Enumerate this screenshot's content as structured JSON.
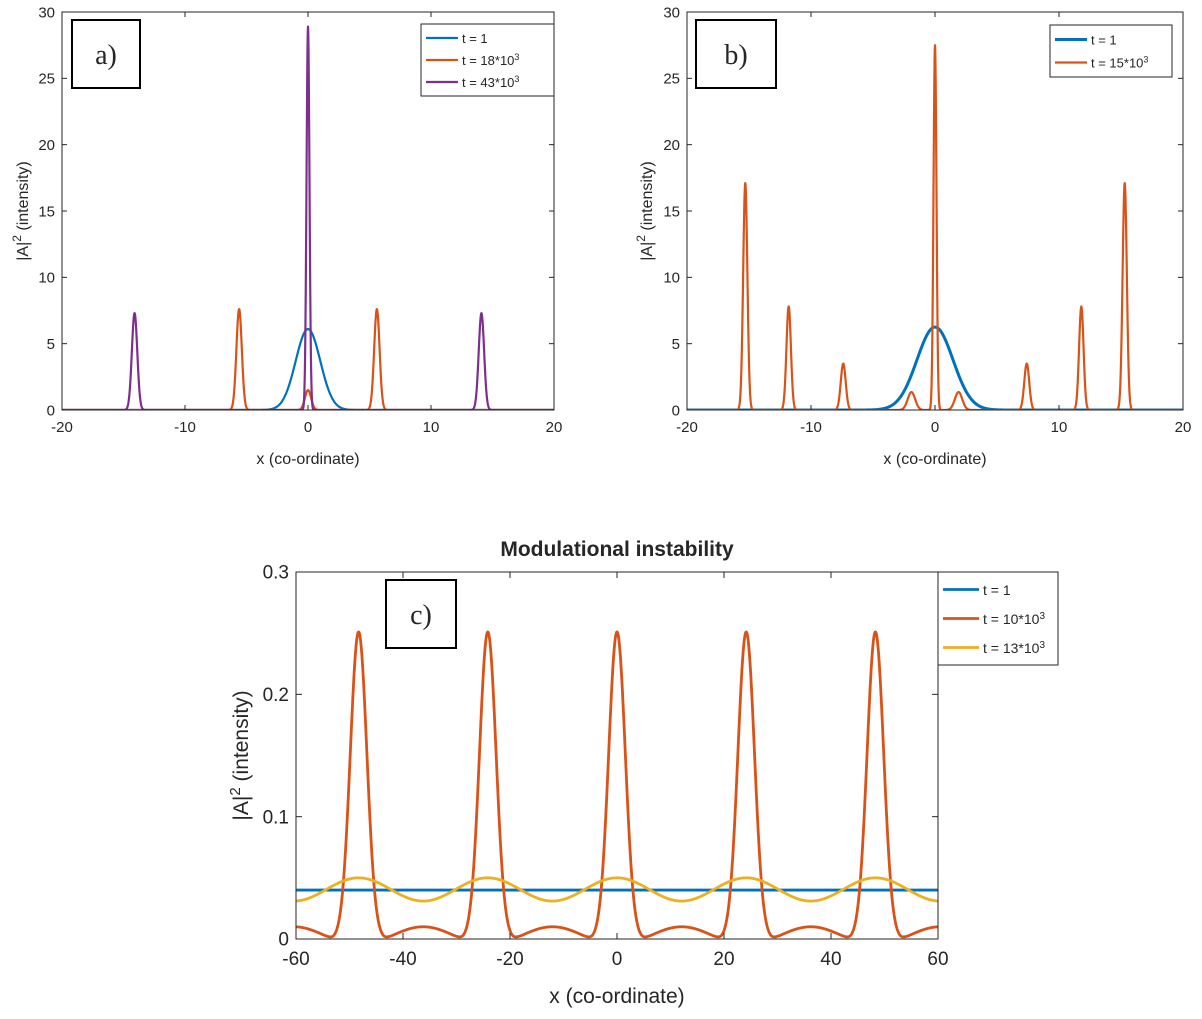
{
  "chart_data": [
    {
      "type": "line",
      "panel": "a)",
      "title": "",
      "xlabel": "x (co-ordinate)",
      "ylabel": "|A|^2 (intensity)",
      "xlim": [
        -20,
        20
      ],
      "ylim": [
        0,
        30
      ],
      "xticks": [
        -20,
        -10,
        0,
        10,
        20
      ],
      "yticks": [
        0,
        5,
        10,
        15,
        20,
        25,
        30
      ],
      "grid": false,
      "legend_position": "top-right",
      "series": [
        {
          "name": "t = 1",
          "color": "#0072bd",
          "base": 0,
          "peaks": [
            {
              "x": 0,
              "h": 6.1,
              "w": 1.0
            }
          ]
        },
        {
          "name": "t = 18*10^3",
          "color": "#d95319",
          "base": 0,
          "peaks": [
            {
              "x": -5.6,
              "h": 7.6,
              "w": 0.22
            },
            {
              "x": 0,
              "h": 1.5,
              "w": 0.25
            },
            {
              "x": 5.6,
              "h": 7.6,
              "w": 0.22
            }
          ]
        },
        {
          "name": "t = 43*10^3",
          "color": "#7e2f8e",
          "base": 0,
          "peaks": [
            {
              "x": -14.1,
              "h": 7.3,
              "w": 0.22
            },
            {
              "x": 0,
              "h": 28.9,
              "w": 0.12
            },
            {
              "x": 14.1,
              "h": 7.3,
              "w": 0.22
            }
          ]
        }
      ]
    },
    {
      "type": "line",
      "panel": "b)",
      "title": "",
      "xlabel": "x (co-ordinate)",
      "ylabel": "|A|^2 (intensity)",
      "xlim": [
        -20,
        20
      ],
      "ylim": [
        0,
        30
      ],
      "xticks": [
        -20,
        -10,
        0,
        10,
        20
      ],
      "yticks": [
        0,
        5,
        10,
        15,
        20,
        25,
        30
      ],
      "grid": false,
      "legend_position": "top-right",
      "series": [
        {
          "name": "t = 1",
          "color": "#0072bd",
          "base": 0,
          "peaks": [
            {
              "x": 0,
              "h": 6.25,
              "w": 1.45
            }
          ]
        },
        {
          "name": "t = 15*10^3",
          "color": "#d95319",
          "base": 0,
          "peaks": [
            {
              "x": -15.3,
              "h": 17.1,
              "w": 0.17
            },
            {
              "x": -11.8,
              "h": 7.8,
              "w": 0.18
            },
            {
              "x": -7.4,
              "h": 3.5,
              "w": 0.2
            },
            {
              "x": -1.9,
              "h": 1.35,
              "w": 0.3
            },
            {
              "x": 0,
              "h": 27.5,
              "w": 0.12
            },
            {
              "x": 1.9,
              "h": 1.35,
              "w": 0.3
            },
            {
              "x": 7.4,
              "h": 3.5,
              "w": 0.2
            },
            {
              "x": 11.8,
              "h": 7.8,
              "w": 0.18
            },
            {
              "x": 15.3,
              "h": 17.1,
              "w": 0.17
            }
          ]
        }
      ]
    },
    {
      "type": "line",
      "panel": "c)",
      "title": "Modulational instability",
      "xlabel": "x (co-ordinate)",
      "ylabel": "|A|^2 (intensity)",
      "xlim": [
        -60,
        60
      ],
      "ylim": [
        0,
        0.3
      ],
      "xticks": [
        -60,
        -40,
        -20,
        0,
        20,
        40,
        60
      ],
      "yticks": [
        0,
        0.1,
        0.2,
        0.3
      ],
      "grid": false,
      "legend_position": "top-right",
      "series": [
        {
          "name": "t = 1",
          "color": "#0072bd",
          "constant": 0.04
        },
        {
          "name": "t = 10*10^3",
          "color": "#d95319",
          "periodic": {
            "period": 24.15,
            "peak": 0.251,
            "trough": 0.0,
            "mid": 0.01
          }
        },
        {
          "name": "t = 13*10^3",
          "color": "#edb120",
          "cosine": {
            "period": 24.15,
            "mean": 0.0405,
            "amplitude": 0.0095
          }
        }
      ]
    }
  ]
}
